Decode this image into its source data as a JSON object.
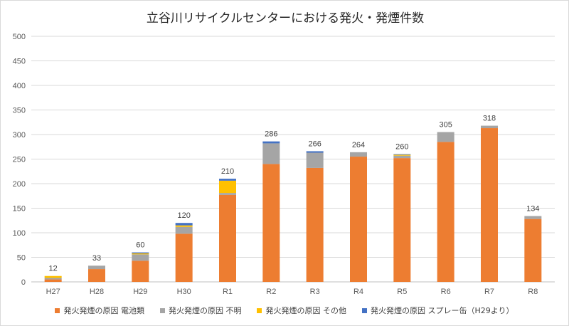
{
  "chart_data": {
    "type": "bar",
    "stacked": true,
    "title": "立谷川リサイクルセンターにおける発火・発煙件数",
    "categories": [
      "H27",
      "H28",
      "H29",
      "H30",
      "R1",
      "R2",
      "R3",
      "R4",
      "R5",
      "R6",
      "R7",
      "R8"
    ],
    "totals": [
      "12",
      "33",
      "60",
      "120",
      "210",
      "286",
      "266",
      "264",
      "260",
      "305",
      "318",
      "134"
    ],
    "ylim": [
      0,
      500
    ],
    "yticks": [
      "0",
      "50",
      "100",
      "150",
      "200",
      "250",
      "300",
      "350",
      "400",
      "450",
      "500"
    ],
    "grid": true,
    "legend_position": "bottom",
    "series": [
      {
        "name": "発火発煙の原因 電池類",
        "color": "#ed7d31",
        "values": [
          5,
          26,
          43,
          98,
          177,
          240,
          232,
          255,
          252,
          285,
          313,
          128
        ]
      },
      {
        "name": "発火発煙の原因 不明",
        "color": "#a5a5a5",
        "values": [
          3,
          7,
          13,
          14,
          4,
          42,
          31,
          9,
          5,
          20,
          5,
          6
        ]
      },
      {
        "name": "発火発煙の原因 その他",
        "color": "#ffc000",
        "values": [
          4,
          0,
          2,
          3,
          25,
          0,
          0,
          0,
          2,
          0,
          0,
          0
        ]
      },
      {
        "name": "発火発煙の原因 スプレー缶（H29より）",
        "color": "#4472c4",
        "values": [
          0,
          0,
          2,
          5,
          4,
          4,
          3,
          0,
          1,
          0,
          0,
          0
        ]
      }
    ]
  }
}
